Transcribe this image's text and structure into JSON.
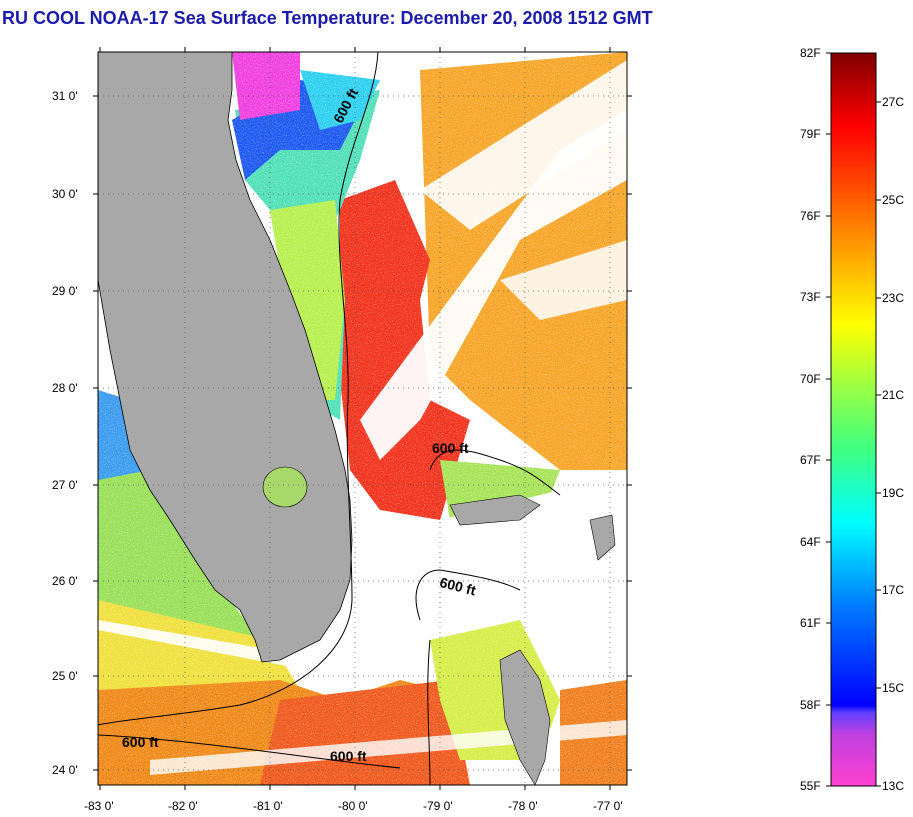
{
  "title": "RU COOL  NOAA-17  Sea Surface Temperature:  December 20, 2008 1512 GMT",
  "map": {
    "lat_labels": [
      "31 0'",
      "30 0'",
      "29 0'",
      "28 0'",
      "27 0'",
      "26 0'",
      "25 0'",
      "24 0'"
    ],
    "lon_labels": [
      "-83 0'",
      "-82 0'",
      "-81 0'",
      "-80 0'",
      "-79 0'",
      "-78 0'",
      "-77 0'"
    ],
    "contour_labels": [
      "600 ft",
      "600 ft",
      "600 ft",
      "600 ft",
      "600 ft"
    ],
    "colors": {
      "land": "#a8a8a8",
      "cloud": "#ffffff",
      "warm": "#f0321e",
      "orange": "#f7a01e",
      "yellow": "#f2e23a",
      "green": "#8de55a",
      "cyan": "#2fe6e2",
      "blue": "#1e50f0",
      "magenta": "#f040e0"
    }
  },
  "colorbar": {
    "f_labels": [
      "82F",
      "79F",
      "76F",
      "73F",
      "70F",
      "67F",
      "64F",
      "61F",
      "58F",
      "55F"
    ],
    "c_labels": [
      "27C",
      "25C",
      "23C",
      "21C",
      "19C",
      "17C",
      "15C",
      "13C"
    ]
  }
}
